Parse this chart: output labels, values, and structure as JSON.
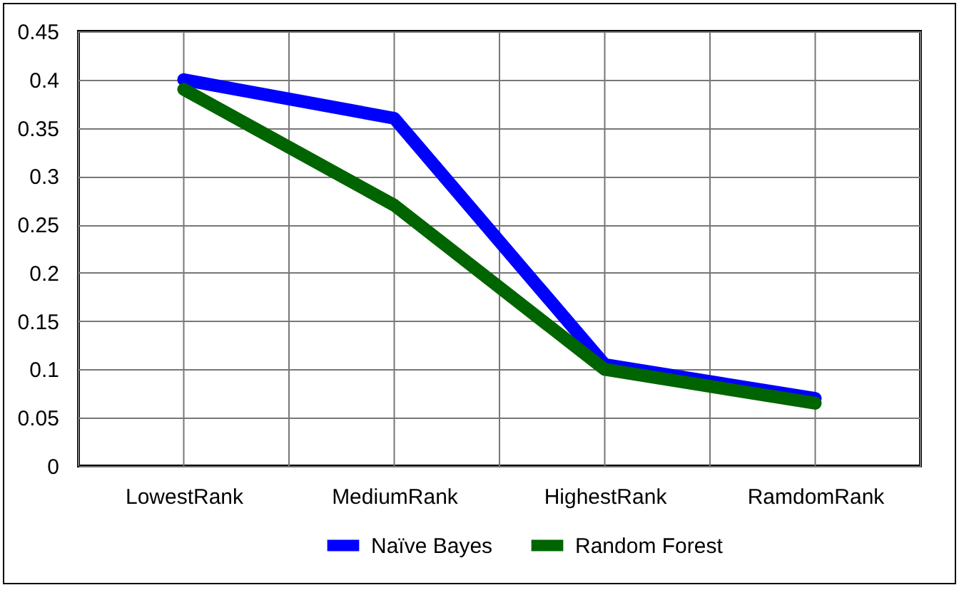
{
  "chart_data": {
    "type": "line",
    "categories": [
      "LowestRank",
      "MediumRank",
      "HighestRank",
      "RamdomRank"
    ],
    "series": [
      {
        "name": "Naïve Bayes",
        "color": "#0000ff",
        "values": [
          0.4,
          0.36,
          0.105,
          0.07
        ]
      },
      {
        "name": "Random Forest",
        "color": "#006400",
        "values": [
          0.39,
          0.27,
          0.1,
          0.065
        ]
      }
    ],
    "ylim": [
      0,
      0.45
    ],
    "yticks": [
      0,
      0.05,
      0.1,
      0.15,
      0.2,
      0.25,
      0.3,
      0.35,
      0.4,
      0.45
    ],
    "grid": true,
    "legend": "bottom",
    "marker": "none",
    "line_style": "solid"
  }
}
